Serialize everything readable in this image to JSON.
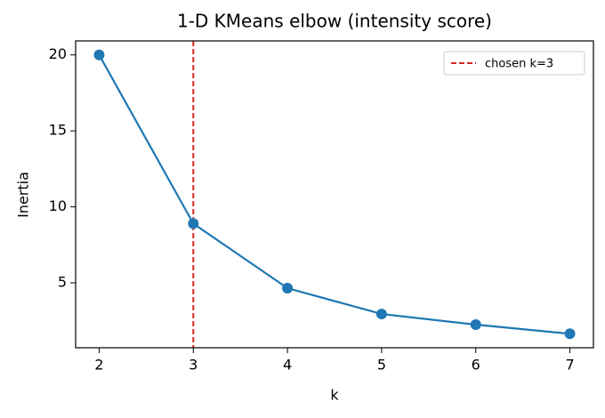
{
  "chart_data": {
    "type": "line",
    "title": "1-D KMeans elbow (intensity score)",
    "x_label": "k",
    "y_label": "Inertia",
    "x": [
      2,
      3,
      4,
      5,
      6,
      7
    ],
    "values": [
      20.0,
      8.9,
      4.65,
      2.95,
      2.25,
      1.65
    ],
    "color": "#1f77b4",
    "xlim": [
      1.75,
      7.25
    ],
    "xticks": [
      2,
      3,
      4,
      5,
      6,
      7
    ],
    "ylim": [
      0.73,
      20.92
    ],
    "yticks": [
      5,
      10,
      15,
      20
    ],
    "reference_line": {
      "x": 3,
      "label": "chosen k=3",
      "color": "#d62728"
    },
    "legend": "upper right",
    "grid": false
  }
}
